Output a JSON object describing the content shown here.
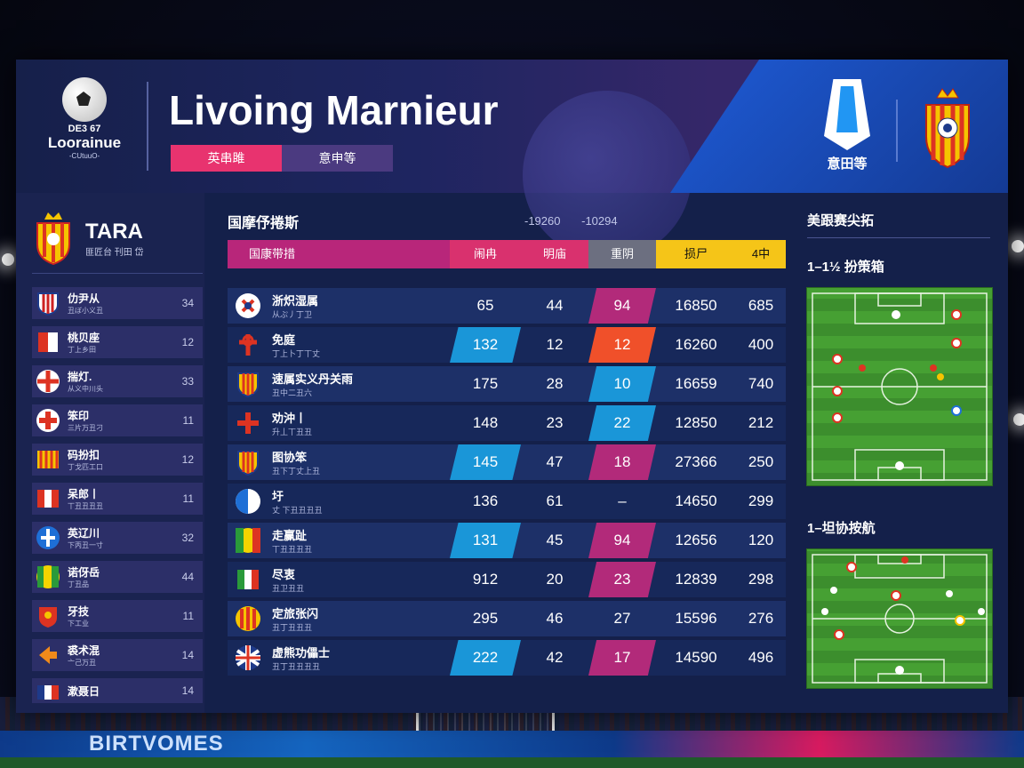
{
  "header": {
    "logo_line1": "DE3 67",
    "logo_line2": "Loorainue",
    "logo_line3": "-CUtuuO-",
    "title": "Livoing Marnieur",
    "tab1": "英串雎",
    "tab2": "意申等",
    "league_caption": "意田等"
  },
  "left_panel": {
    "club_name": "TARA",
    "club_sub": "匪匠台 刊田 岱",
    "teams": [
      {
        "name": "仂尹从",
        "sub": "丑ぼ小义丑",
        "value": "34",
        "flag": "red-blue-shield"
      },
      {
        "name": "桃贝座",
        "sub": "丁上乡田",
        "value": "12",
        "flag": "red-white"
      },
      {
        "name": "揣灯.",
        "sub": "从义中川头",
        "value": "33",
        "flag": "england"
      },
      {
        "name": "笨印",
        "sub": "三片万丑刁",
        "value": "11",
        "flag": "red-circle"
      },
      {
        "name": "码扮扣",
        "sub": "丁戈匹工口",
        "value": "12",
        "flag": "catalan"
      },
      {
        "name": "呆郎丨",
        "sub": "丅丑丑丑丑",
        "value": "11",
        "flag": "austria"
      },
      {
        "name": "英辽川",
        "sub": "下丙丑一寸",
        "value": "32",
        "flag": "blue-cross"
      },
      {
        "name": "诺伢岳",
        "sub": "丁丑品",
        "value": "44",
        "flag": "green-yellow"
      },
      {
        "name": "牙技",
        "sub": "下工业",
        "value": "11",
        "flag": "red-crest"
      },
      {
        "name": "裘术混",
        "sub": "亠己万丑",
        "value": "14",
        "flag": "orange-arrow"
      },
      {
        "name": "漱聂日",
        "sub": "",
        "value": "14",
        "flag": "france"
      }
    ]
  },
  "center": {
    "title": "国摩伃捲斯",
    "nums": [
      "-19260",
      "-10294"
    ],
    "headers": [
      "国康带措",
      "闹冉",
      "明庙",
      "重阴",
      "损尸",
      "4中"
    ],
    "rows": [
      {
        "name": "浙炽湿属",
        "sub": "从ぷ丿丁卫",
        "v1": "65",
        "v2": "44",
        "v3": "94",
        "v4": "16850",
        "v5": "685",
        "flag": "cross-circle"
      },
      {
        "name": "免庭",
        "sub": "丁上卜丁丅丈",
        "v1": "132",
        "v2": "12",
        "v3": "12",
        "v4": "16260",
        "v5": "400",
        "flag": "red-cross"
      },
      {
        "name": "速属实义丹关雨",
        "sub": "丑中二丑六",
        "v1": "175",
        "v2": "28",
        "v3": "10",
        "v4": "16659",
        "v5": "740",
        "flag": "catalan-shield"
      },
      {
        "name": "劝沖丨",
        "sub": "升丄丅丑丑",
        "v1": "148",
        "v2": "23",
        "v3": "22",
        "v4": "12850",
        "v5": "212",
        "flag": "red-plus"
      },
      {
        "name": "图协笨",
        "sub": "丑下丁丈上丑",
        "v1": "145",
        "v2": "47",
        "v3": "18",
        "v4": "27366",
        "v5": "250",
        "flag": "catalan-shield"
      },
      {
        "name": "圩",
        "sub": "丈 下丑丑丑丑",
        "v1": "136",
        "v2": "61",
        "v3": "–",
        "v4": "14650",
        "v5": "299",
        "flag": "blue-white"
      },
      {
        "name": "走赢趾",
        "sub": "丅丑丑丑丑",
        "v1": "131",
        "v2": "45",
        "v3": "94",
        "v4": "12656",
        "v5": "120",
        "flag": "green-yellow"
      },
      {
        "name": "尽衷",
        "sub": "丑卫丑丑",
        "v1": "912",
        "v2": "20",
        "v3": "23",
        "v4": "12839",
        "v5": "298",
        "flag": "italy"
      },
      {
        "name": "定旅张闪",
        "sub": "丑丁丑丑丑",
        "v1": "295",
        "v2": "46",
        "v3": "27",
        "v4": "15596",
        "v5": "276",
        "flag": "spain-crest"
      },
      {
        "name": "虚熊功儡士",
        "sub": "丑丁丑丑丑丑",
        "v1": "222",
        "v2": "42",
        "v3": "17",
        "v4": "14590",
        "v5": "496",
        "flag": "uk"
      }
    ]
  },
  "right_panel": {
    "title": "美跟赛尖拓",
    "pitch1_title": "1–1½ 扮策箱",
    "pitch2_title": "1–坦协按航"
  },
  "background": {
    "adboard_text": "BIRTVOMES"
  }
}
